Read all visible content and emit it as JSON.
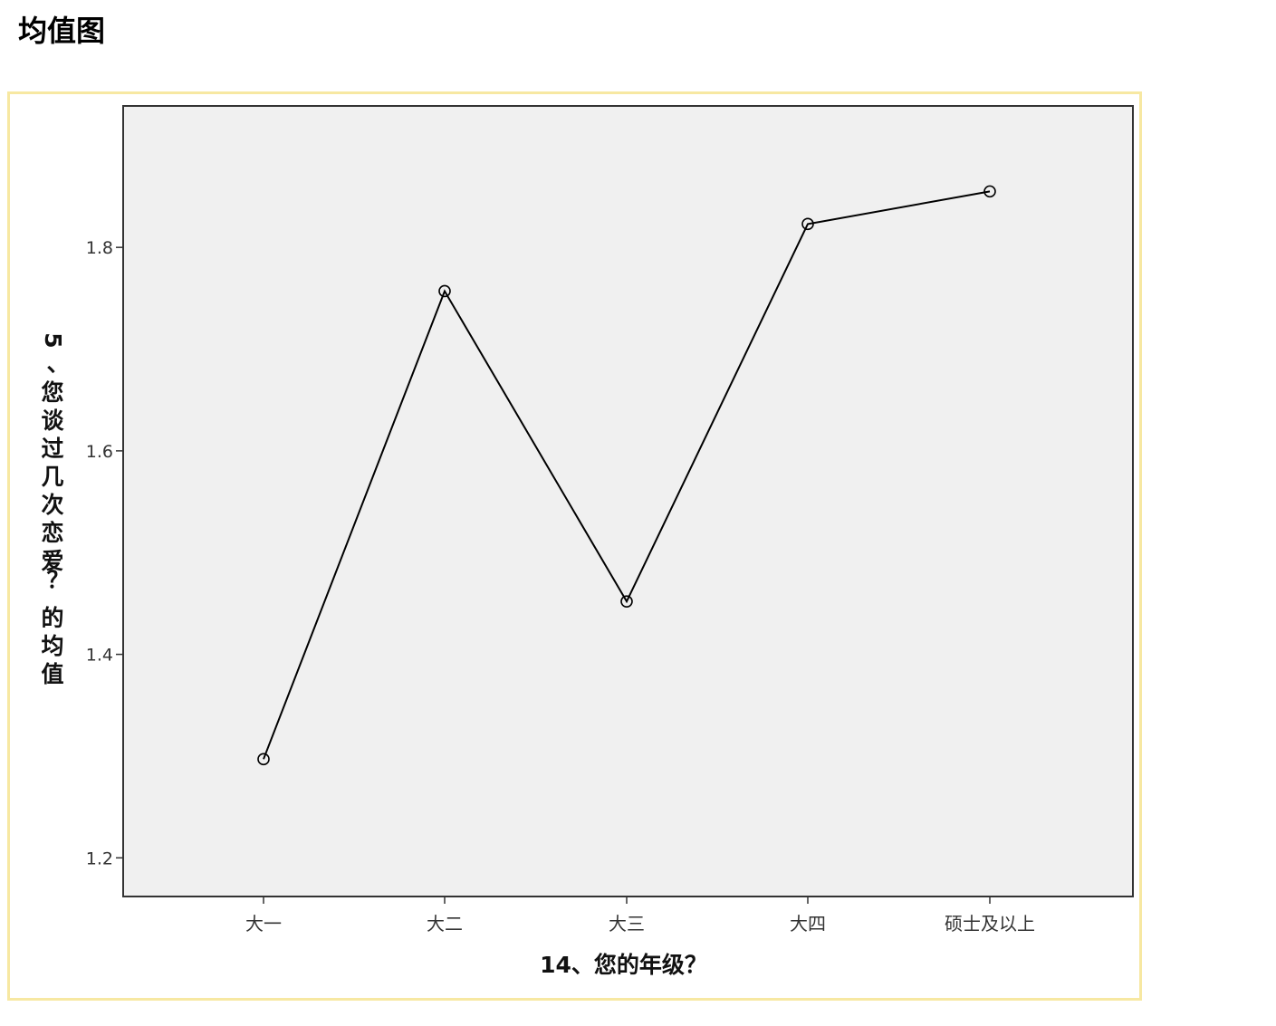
{
  "page": {
    "title": "均值图"
  },
  "chart_data": {
    "type": "line",
    "title": "",
    "xlabel": "14、您的年级？",
    "ylabel": "5、您谈过几次恋爱？ 的均值",
    "categories": [
      "大一",
      "大二",
      "大三",
      "大四",
      "硕士及以上"
    ],
    "values": [
      1.297,
      1.757,
      1.452,
      1.823,
      1.855
    ],
    "ylim": [
      1.162,
      1.939
    ],
    "yticks": [
      1.2,
      1.4,
      1.6,
      1.8
    ],
    "ytick_labels": [
      "1.2",
      "1.4",
      "1.6",
      "1.8"
    ],
    "grid": false,
    "legend": "none",
    "marker": "open-circle",
    "colors": {
      "plot_background": "#f0f0f0",
      "line": "#000000",
      "frame_border": "#f7e8a2"
    }
  }
}
